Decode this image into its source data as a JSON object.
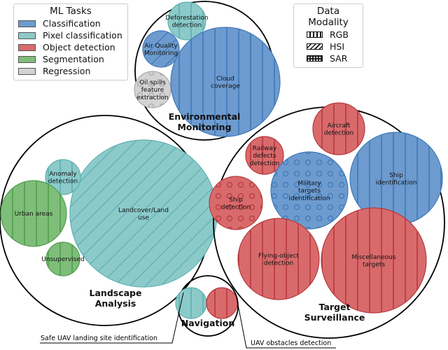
{
  "legend_tasks": {
    "title": "ML Tasks",
    "items": [
      {
        "label": "Classification",
        "color": "#6d9bcf"
      },
      {
        "label": "Pixel classification",
        "color": "#8ccaca"
      },
      {
        "label": "Object detection",
        "color": "#d86a6c"
      },
      {
        "label": "Segmentation",
        "color": "#7fbd7a"
      },
      {
        "label": "Regression",
        "color": "#d3d3d3"
      }
    ]
  },
  "legend_modality": {
    "title": "Data Modality",
    "items": [
      {
        "label": "RGB",
        "pattern": "vertical-lines"
      },
      {
        "label": "HSI",
        "pattern": "diagonal-lines"
      },
      {
        "label": "SAR",
        "pattern": "circles"
      }
    ]
  },
  "groups": [
    {
      "label": "Environmental\nMonitoring",
      "children": [
        {
          "label": "Deforestation\ndetection",
          "task": "Pixel classification",
          "modality": "RGB"
        },
        {
          "label": "Air Quality\nMonitoring",
          "task": "Classification",
          "modality": "HSI"
        },
        {
          "label": "Oil spills\nfeature\nextraction",
          "task": "Regression",
          "modality": "SAR"
        },
        {
          "label": "Cloud\ncoverage",
          "task": "Classification",
          "modality": "RGB"
        }
      ]
    },
    {
      "label": "Landscape\nAnalysis",
      "children": [
        {
          "label": "Landcover/Land\nuse",
          "task": "Pixel classification",
          "modality": "HSI"
        },
        {
          "label": "Anomaly\ndetection",
          "task": "Pixel classification",
          "modality": "RGB"
        },
        {
          "label": "Urban areas",
          "task": "Segmentation",
          "modality": "RGB"
        },
        {
          "label": "Unsupervised",
          "task": "Segmentation",
          "modality": "RGB"
        }
      ]
    },
    {
      "label": "Target\nSurveillance",
      "children": [
        {
          "label": "Aircraft\ndetection",
          "task": "Object detection",
          "modality": "RGB"
        },
        {
          "label": "Ship\nidentification",
          "task": "Classification",
          "modality": "RGB"
        },
        {
          "label": "Railway\ndefects\ndetection",
          "task": "Object detection",
          "modality": "RGB"
        },
        {
          "label": "Military\ntargets\nidentification",
          "task": "Classification",
          "modality": "SAR"
        },
        {
          "label": "Ship\ndetection",
          "task": "Object detection",
          "modality": "SAR"
        },
        {
          "label": "Flying-object\ndetection",
          "task": "Object detection",
          "modality": "RGB"
        },
        {
          "label": "Miscellaneous\ntargets",
          "task": "Object detection",
          "modality": "RGB"
        }
      ]
    },
    {
      "label": "Navigation",
      "children": [
        {
          "label": "Safe UAV landing site identification",
          "task": "Pixel classification",
          "modality": "RGB"
        },
        {
          "label": "UAV obstacles detection",
          "task": "Object detection",
          "modality": "RGB"
        }
      ]
    }
  ]
}
